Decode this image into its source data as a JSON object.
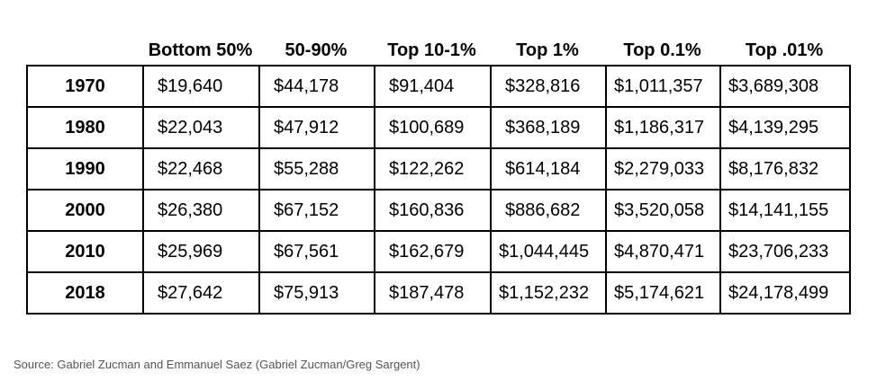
{
  "table": {
    "columns": [
      "",
      "Bottom 50%",
      "50-90%",
      "Top 10-1%",
      "Top 1%",
      "Top 0.1%",
      "Top .01%"
    ],
    "rows": [
      {
        "year": "1970",
        "values": [
          "$19,640",
          "$44,178",
          "$91,404",
          "$328,816",
          "$1,011,357",
          "$3,689,308"
        ]
      },
      {
        "year": "1980",
        "values": [
          "$22,043",
          "$47,912",
          "$100,689",
          "$368,189",
          "$1,186,317",
          "$4,139,295"
        ]
      },
      {
        "year": "1990",
        "values": [
          "$22,468",
          "$55,288",
          "$122,262",
          "$614,184",
          "$2,279,033",
          "$8,176,832"
        ]
      },
      {
        "year": "2000",
        "values": [
          "$26,380",
          "$67,152",
          "$160,836",
          "$886,682",
          "$3,520,058",
          "$14,141,155"
        ]
      },
      {
        "year": "2010",
        "values": [
          "$25,969",
          "$67,561",
          "$162,679",
          "$1,044,445",
          "$4,870,471",
          "$23,706,233"
        ]
      },
      {
        "year": "2018",
        "values": [
          "$27,642",
          "$75,913",
          "$187,478",
          "$1,152,232",
          "$5,174,621",
          "$24,178,499"
        ]
      }
    ]
  },
  "source": "Source: Gabriel Zucman and Emmanuel Saez (Gabriel Zucman/Greg Sargent)"
}
